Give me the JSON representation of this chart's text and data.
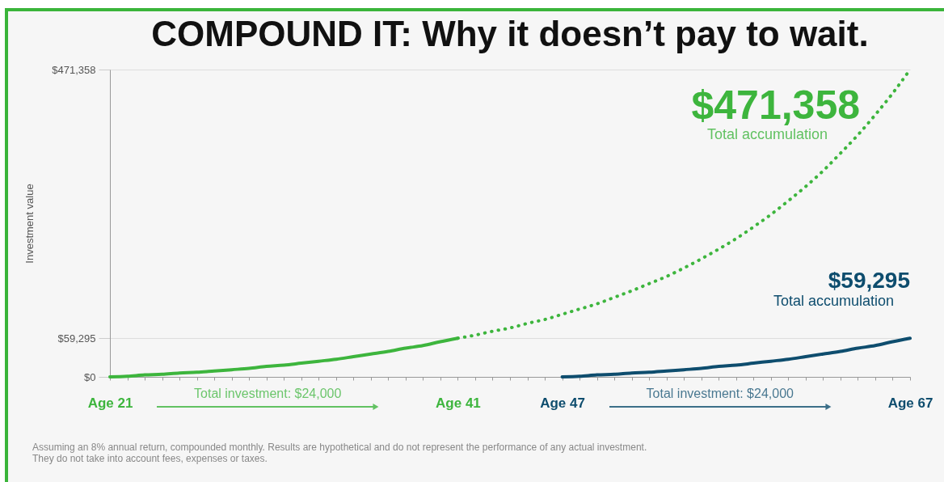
{
  "chart_data": {
    "type": "line",
    "title": "COMPOUND IT: Why it doesn’t pay to wait.",
    "ylabel": "Investment value",
    "categories": [
      "Age 21",
      null,
      null,
      null,
      null,
      null,
      null,
      null,
      null,
      null,
      null,
      null,
      null,
      null,
      null,
      null,
      null,
      null,
      null,
      null,
      "Age 41",
      null,
      null,
      null,
      null,
      null,
      "Age 47",
      null,
      null,
      null,
      null,
      null,
      null,
      null,
      null,
      null,
      null,
      null,
      null,
      null,
      null,
      null,
      null,
      null,
      null,
      null,
      "Age 67"
    ],
    "series": [
      {
        "color": "#3db53d",
        "line_style": "solid",
        "values": [
          0,
          1000,
          3000,
          4000,
          6000,
          7000,
          9000,
          11000,
          13000,
          16000,
          18000,
          21000,
          24000,
          27000,
          31000,
          35000,
          39000,
          44000,
          48000,
          54000,
          59295,
          null,
          null,
          null,
          null,
          null,
          null,
          null,
          null,
          null,
          null,
          null,
          null,
          null,
          null,
          null,
          null,
          null,
          null,
          null,
          null,
          null,
          null,
          null,
          null,
          null,
          null
        ]
      },
      {
        "color": "#3db53d",
        "line_style": "dotted",
        "values": [
          null,
          null,
          null,
          null,
          null,
          null,
          null,
          null,
          null,
          null,
          null,
          null,
          null,
          null,
          null,
          null,
          null,
          null,
          null,
          null,
          59295,
          64000,
          70000,
          75000,
          82000,
          88000,
          96000,
          104000,
          112000,
          122000,
          132000,
          143000,
          154000,
          167000,
          181000,
          196000,
          212000,
          230000,
          249000,
          270000,
          292000,
          316000,
          343000,
          371000,
          402000,
          435000,
          471358
        ],
        "value_labels": [
          null,
          null,
          null,
          null,
          null,
          null,
          null,
          null,
          null,
          null,
          null,
          null,
          null,
          null,
          null,
          null,
          null,
          null,
          null,
          null,
          null,
          null,
          null,
          null,
          null,
          null,
          null,
          null,
          null,
          null,
          null,
          null,
          null,
          null,
          null,
          null,
          null,
          null,
          null,
          null,
          null,
          null,
          null,
          null,
          null,
          null,
          "$471,358"
        ]
      },
      {
        "color": "#0e4d6e",
        "line_style": "solid",
        "values": [
          null,
          null,
          null,
          null,
          null,
          null,
          null,
          null,
          null,
          null,
          null,
          null,
          null,
          null,
          null,
          null,
          null,
          null,
          null,
          null,
          null,
          null,
          null,
          null,
          null,
          null,
          0,
          1000,
          3000,
          4000,
          6000,
          7000,
          9000,
          11000,
          13000,
          16000,
          18000,
          21000,
          24000,
          27000,
          31000,
          35000,
          39000,
          44000,
          48000,
          54000,
          59295
        ],
        "value_labels": [
          null,
          null,
          null,
          null,
          null,
          null,
          null,
          null,
          null,
          null,
          null,
          null,
          null,
          null,
          null,
          null,
          null,
          null,
          null,
          null,
          null,
          null,
          null,
          null,
          null,
          null,
          null,
          null,
          null,
          null,
          null,
          null,
          null,
          null,
          null,
          null,
          null,
          null,
          null,
          null,
          null,
          null,
          null,
          null,
          null,
          null,
          "$59,295"
        ]
      }
    ],
    "ylim": [
      0,
      471358
    ],
    "yticks": [
      {
        "value": 0,
        "label": "$0"
      },
      {
        "value": 59295,
        "label": "$59,295"
      },
      {
        "value": 471358,
        "label": "$471,358"
      }
    ],
    "grid": "y",
    "annotations": [
      "Total accumulation",
      "Total accumulation",
      "Total investment: $24,000",
      "Total investment: $24,000",
      "Assuming an 8% annual return, compounded monthly. Results are hypothetical and do not represent the performance of any actual investment.\nThey do not take into account fees, expenses or taxes."
    ]
  }
}
